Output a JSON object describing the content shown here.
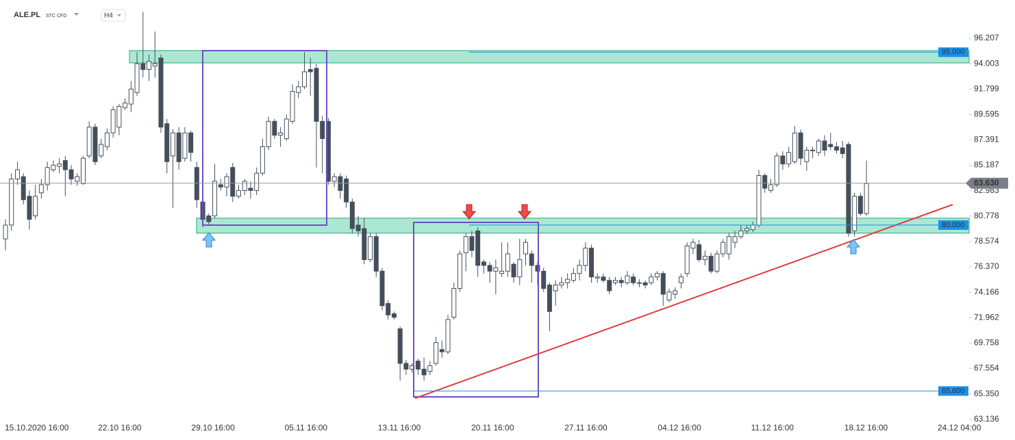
{
  "chart_data": {
    "type": "candlestick",
    "symbol": "ALE.PL",
    "instrument": "STC CFD",
    "interval": "H4",
    "categories": [
      "15.10.2020 16:00",
      "22.10 16:00",
      "29.10 16:00",
      "05.11 16:00",
      "13.11 16:00",
      "20.11 16:00",
      "27.11 16:00",
      "04.12 16:00",
      "11.12 16:00",
      "18.12 16:00",
      "24.12 04:00"
    ],
    "ylim": [
      61.35,
      99.53
    ],
    "yticks": [
      96.207,
      94.003,
      91.799,
      89.595,
      87.391,
      85.187,
      82.983,
      80.778,
      78.574,
      {
        "value": 76.37,
        "label": "76.370"
      },
      74.166,
      71.962,
      69.758,
      67.554,
      {
        "value": 65.35,
        "label": "65.350"
      },
      63.136
    ],
    "up_color": "#ffffff",
    "down_color": "#454f5b",
    "ohlc": [
      [
        78.8,
        80.5,
        77.8,
        80
      ],
      [
        80,
        84.5,
        79.5,
        84
      ],
      [
        84,
        85.5,
        83.5,
        84.8
      ],
      [
        84.2,
        84.5,
        81.8,
        82.2
      ],
      [
        82.5,
        83,
        79.6,
        80.5
      ],
      [
        80.8,
        83.5,
        80.5,
        82.5
      ],
      [
        82.8,
        84,
        82.3,
        83.5
      ],
      [
        83.5,
        85.5,
        83,
        85
      ],
      [
        84.8,
        85.6,
        84.6,
        85.2
      ],
      [
        85.1,
        85.8,
        84.5,
        85.3
      ],
      [
        85.6,
        86,
        82.5,
        84.8
      ],
      [
        84.8,
        85.2,
        83.5,
        84
      ],
      [
        83.8,
        84.5,
        83.4,
        84.2
      ],
      [
        83.6,
        86,
        83.5,
        85.8
      ],
      [
        86,
        89,
        85.8,
        88.5
      ],
      [
        88.5,
        88.8,
        85.2,
        85.5
      ],
      [
        86,
        87.5,
        85.8,
        87
      ],
      [
        86.8,
        88.4,
        86.5,
        88
      ],
      [
        88,
        90.3,
        87.6,
        90
      ],
      [
        88.5,
        90.5,
        87.8,
        90.3
      ],
      [
        90.2,
        91,
        90,
        90.6
      ],
      [
        90.5,
        92.5,
        89.8,
        91.8
      ],
      [
        91.5,
        95,
        91.2,
        94
      ],
      [
        94,
        98.5,
        92.8,
        93.5
      ],
      [
        93.5,
        94.8,
        92.5,
        94.2
      ],
      [
        93.8,
        96.8,
        92.8,
        94
      ],
      [
        94.5,
        94.8,
        88,
        88.5
      ],
      [
        88.8,
        89.2,
        84.5,
        85.5
      ],
      [
        86,
        88.3,
        81.5,
        88
      ],
      [
        88,
        88.5,
        84.8,
        85.5
      ],
      [
        85.8,
        88.5,
        85.5,
        88
      ],
      [
        88,
        88.2,
        85.5,
        86.3
      ],
      [
        85,
        85.5,
        81.5,
        82.2
      ],
      [
        82,
        82.2,
        79.8,
        80.5
      ],
      [
        80.8,
        81,
        80,
        80.3
      ],
      [
        80.8,
        85.3,
        80.6,
        83.8
      ],
      [
        83.5,
        84,
        83,
        83.3
      ],
      [
        83.3,
        84.5,
        82.5,
        84.2
      ],
      [
        85,
        85.4,
        82,
        82.5
      ],
      [
        82.5,
        83.5,
        82.3,
        83
      ],
      [
        83,
        84,
        82.6,
        83.8
      ],
      [
        83.2,
        83.8,
        82.3,
        83
      ],
      [
        83,
        85,
        82.6,
        84.5
      ],
      [
        84.5,
        87.5,
        84.3,
        86.8
      ],
      [
        86.8,
        89.4,
        86.5,
        89
      ],
      [
        89,
        89.2,
        87.5,
        87.8
      ],
      [
        87.8,
        88.5,
        86.8,
        88
      ],
      [
        87.5,
        89.6,
        87.3,
        89.2
      ],
      [
        89,
        92.2,
        88.8,
        91.6
      ],
      [
        91.5,
        92.5,
        91,
        92
      ],
      [
        92,
        95,
        91.8,
        93.3
      ],
      [
        93.5,
        94.5,
        91.2,
        93.3
      ],
      [
        93.6,
        94,
        85,
        89
      ],
      [
        89,
        89.5,
        84.5,
        87.5
      ],
      [
        89,
        89.3,
        83.5,
        83.8
      ],
      [
        83.8,
        84.5,
        83.3,
        84.2
      ],
      [
        84.2,
        84.5,
        82.3,
        83
      ],
      [
        84,
        84.3,
        81.5,
        82
      ],
      [
        82,
        82.3,
        79.3,
        79.7
      ],
      [
        80,
        80.8,
        79,
        79.5
      ],
      [
        79.7,
        80.6,
        76.6,
        77
      ],
      [
        77,
        79.3,
        76.8,
        79
      ],
      [
        79,
        79.3,
        75.5,
        76
      ],
      [
        76,
        76.3,
        72.6,
        73
      ],
      [
        73.2,
        73.5,
        71.8,
        72.2
      ],
      [
        72.3,
        72.5,
        71.8,
        72
      ],
      [
        71,
        71.2,
        66.5,
        68
      ],
      [
        68,
        68.3,
        67,
        67.5
      ],
      [
        67.5,
        68,
        67.2,
        67.8
      ],
      [
        68.2,
        68.4,
        67,
        67.5
      ],
      [
        67.5,
        68.5,
        66.5,
        67
      ],
      [
        67.3,
        68.2,
        67,
        67.8
      ],
      [
        68,
        70.3,
        67.8,
        69.8
      ],
      [
        69.2,
        70,
        68.5,
        69
      ],
      [
        69,
        72.2,
        68.8,
        71.8
      ],
      [
        72,
        75,
        71.8,
        74.5
      ],
      [
        74.5,
        77.8,
        74.2,
        77.5
      ],
      [
        77.6,
        79.3,
        76,
        79
      ],
      [
        79,
        79.5,
        77.2,
        77.8
      ],
      [
        79.5,
        79.8,
        75.5,
        76.5
      ],
      [
        76.8,
        77,
        75.8,
        76.5
      ],
      [
        76.5,
        76.8,
        75,
        76
      ],
      [
        76,
        77,
        74,
        76.3
      ],
      [
        75.8,
        78.5,
        75.5,
        76
      ],
      [
        76,
        78.5,
        75.5,
        77.5
      ],
      [
        76.6,
        76.8,
        75,
        75.5
      ],
      [
        75.5,
        78.8,
        74.8,
        77
      ],
      [
        77.5,
        78.8,
        76.5,
        78.5
      ],
      [
        77.5,
        77.8,
        75,
        76.5
      ],
      [
        76.5,
        76.8,
        74.8,
        76
      ],
      [
        76,
        76.3,
        74.2,
        74.5
      ],
      [
        74.8,
        75,
        70.8,
        72.5
      ],
      [
        74.3,
        75.2,
        73,
        74.8
      ],
      [
        74.8,
        75.5,
        74.5,
        75
      ],
      [
        75,
        75.8,
        74.5,
        75.3
      ],
      [
        75.2,
        76.3,
        75,
        75.8
      ],
      [
        75.8,
        77,
        75.2,
        76.5
      ],
      [
        76.5,
        78.5,
        76,
        78
      ],
      [
        78,
        78.3,
        75,
        75.5
      ],
      [
        75.4,
        75.8,
        75,
        75.5
      ],
      [
        75.5,
        75.8,
        75,
        75.2
      ],
      [
        75.2,
        75.5,
        74,
        74.3
      ],
      [
        75,
        75.5,
        74.8,
        75.2
      ],
      [
        75.2,
        75.5,
        74.6,
        75
      ],
      [
        75,
        76,
        74.8,
        75.6
      ],
      [
        75.5,
        75.8,
        74.8,
        75
      ],
      [
        75,
        75.3,
        74.6,
        75
      ],
      [
        75,
        75.2,
        74.5,
        74.8
      ],
      [
        75,
        75.8,
        74.8,
        75.5
      ],
      [
        75.5,
        76,
        75.2,
        75.8
      ],
      [
        75.8,
        76,
        73,
        74
      ],
      [
        73.5,
        74.5,
        73.3,
        74.2
      ],
      [
        74,
        74.6,
        73.6,
        74.3
      ],
      [
        75,
        75.8,
        74.5,
        75.5
      ],
      [
        75.8,
        78.5,
        75.5,
        78.2
      ],
      [
        78,
        78.8,
        77.5,
        78.5
      ],
      [
        78.3,
        78.7,
        76.8,
        77
      ],
      [
        77,
        77.8,
        76.5,
        77.3
      ],
      [
        77.3,
        77.6,
        75.8,
        76
      ],
      [
        76,
        77.8,
        75.8,
        77.5
      ],
      [
        77.5,
        78.8,
        77.2,
        78.5
      ],
      [
        77.5,
        79.3,
        77,
        79
      ],
      [
        78.5,
        79.5,
        78,
        79
      ],
      [
        79,
        80,
        78.8,
        79.5
      ],
      [
        79.5,
        80,
        79.2,
        79.7
      ],
      [
        79.6,
        80.3,
        79.4,
        80
      ],
      [
        80,
        84.8,
        79.8,
        84.3
      ],
      [
        84.3,
        84.5,
        82.8,
        83.2
      ],
      [
        83,
        84,
        82.8,
        83.5
      ],
      [
        83.5,
        86.3,
        83.3,
        86
      ],
      [
        86,
        86.4,
        84.8,
        85.3
      ],
      [
        85.3,
        86.8,
        85,
        86.3
      ],
      [
        85.5,
        88.6,
        85.3,
        88
      ],
      [
        88,
        88.3,
        85.2,
        85.8
      ],
      [
        85.5,
        86.8,
        84.7,
        86.5
      ],
      [
        86.5,
        86.8,
        85.8,
        86.5
      ],
      [
        86.3,
        87.5,
        86,
        87.3
      ],
      [
        87.3,
        87.8,
        86,
        86.5
      ],
      [
        87,
        88,
        86.5,
        86.8
      ],
      [
        86.8,
        87.2,
        86.2,
        86.5
      ],
      [
        86.7,
        87.3,
        85.8,
        86.2
      ],
      [
        87,
        87.2,
        79,
        79.3
      ],
      [
        79.5,
        82.8,
        79,
        82.5
      ],
      [
        82.5,
        82.8,
        80.8,
        81
      ],
      [
        81,
        85.6,
        80.8,
        83.6
      ]
    ],
    "zones": [
      [
        94.07,
        95.14
      ],
      [
        79.3,
        80.6
      ]
    ],
    "levels": [
      {
        "value": 95,
        "label": "95.000"
      },
      {
        "value": 80,
        "label": "80.000"
      },
      {
        "value": 65.6,
        "label": "65.600"
      }
    ],
    "last_price": {
      "value": 83.63,
      "label": "83.630"
    }
  }
}
